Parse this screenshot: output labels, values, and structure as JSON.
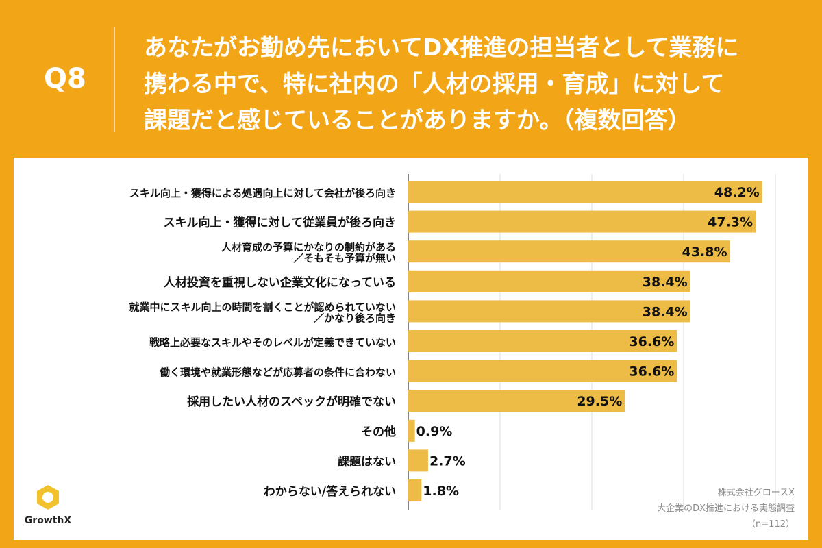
{
  "question": {
    "number": "Q8",
    "lines": [
      "あなたがお勤め先においてDX推進の担当者として業務に",
      "携わる中で、特に社内の「人材の採用・育成」に対して",
      "課題だと感じていることがありますか。（複数回答）"
    ]
  },
  "chart_data": {
    "type": "bar",
    "orientation": "horizontal",
    "categories": [
      [
        "スキル向上・獲得による処遇向上に対して会社が後ろ向き"
      ],
      [
        "スキル向上・獲得に対して従業員が後ろ向き"
      ],
      [
        "人材育成の予算にかなりの制約がある",
        "／そもそも予算が無い"
      ],
      [
        "人材投資を重視しない企業文化になっている"
      ],
      [
        "就業中にスキル向上の時間を割くことが認められていない",
        "／かなり後ろ向き"
      ],
      [
        "戦略上必要なスキルやそのレベルが定義できていない"
      ],
      [
        "働く環境や就業形態などが応募者の条件に合わない"
      ],
      [
        "採用したい人材のスペックが明確でない"
      ],
      [
        "その他"
      ],
      [
        "課題はない"
      ],
      [
        "わからない/答えられない"
      ]
    ],
    "values": [
      48.2,
      47.3,
      43.8,
      38.4,
      38.4,
      36.6,
      36.6,
      29.5,
      0.9,
      2.7,
      1.8
    ],
    "value_suffix": "%",
    "xlim": [
      0,
      60
    ],
    "grid": true,
    "bar_color": "#EDBC47"
  },
  "footer": {
    "company": "株式会社グロースX",
    "survey": "大企業のDX推進における実態調査",
    "sample": "（n=112）"
  },
  "logo": {
    "text": "GrowthX"
  }
}
